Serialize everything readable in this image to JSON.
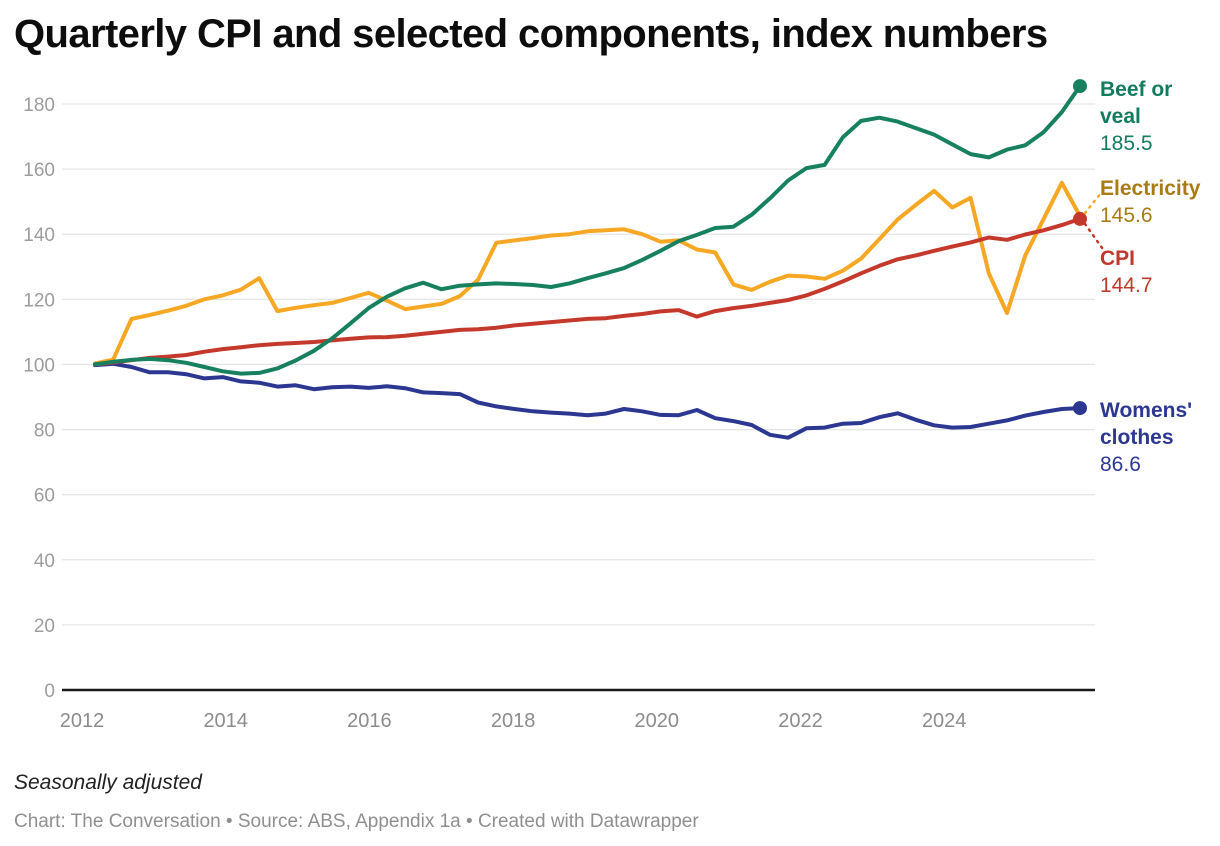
{
  "title": "Quarterly CPI and selected components, index numbers",
  "notes": "Seasonally adjusted",
  "footer": "Chart: The Conversation • Source: ABS, Appendix 1a • Created with Datawrapper",
  "series_labels": [
    {
      "label": "Beef or veal",
      "value": "185.5",
      "color": "#137c5e"
    },
    {
      "label": "Electricity",
      "value": "145.6",
      "color": "#a87c13"
    },
    {
      "label": "CPI",
      "value": "144.7",
      "color": "#c0392b"
    },
    {
      "label": "Womens' clothes",
      "value": "86.6",
      "color": "#2c3792"
    }
  ],
  "chart_data": {
    "type": "line",
    "frequency": "quarterly",
    "x_start": "2012 Q1",
    "x_end": "2025 Q3",
    "title": "Quarterly CPI and selected components, index numbers",
    "xlabel": "",
    "ylabel": "",
    "ylim": [
      0,
      190
    ],
    "grid": "horizontal",
    "legend_position": "right-edge-direct-labels",
    "y_ticks": [
      0,
      20,
      40,
      60,
      80,
      100,
      120,
      140,
      160,
      180
    ],
    "x_tick_labels": [
      "2012",
      "2014",
      "2016",
      "2018",
      "2020",
      "2022",
      "2024"
    ],
    "draw_order": [
      "electricity",
      "womens-clothes",
      "cpi",
      "beef-or-veal"
    ],
    "series": [
      {
        "id": "beef-or-veal",
        "name": "Beef or veal",
        "color": "#17805f",
        "end_dot": true,
        "last_value": 185.5,
        "values": [
          100.0,
          100.8,
          101.4,
          101.7,
          101.3,
          100.5,
          99.2,
          97.9,
          97.2,
          97.4,
          98.8,
          101.2,
          104.2,
          108.0,
          112.6,
          117.3,
          120.8,
          123.4,
          125.1,
          123.1,
          124.2,
          124.6,
          124.9,
          124.7,
          124.4,
          123.8,
          124.9,
          126.5,
          128.0,
          129.6,
          132.1,
          134.9,
          137.9,
          139.8,
          141.9,
          142.3,
          146.0,
          151.0,
          156.5,
          160.3,
          161.3,
          169.8,
          174.8,
          175.8,
          174.6,
          172.6,
          170.6,
          167.6,
          164.6,
          163.6,
          166.0,
          167.3,
          171.3,
          177.5,
          185.5
        ]
      },
      {
        "id": "electricity",
        "name": "Electricity",
        "color": "#f6a723",
        "end_dot": false,
        "last_value": 145.6,
        "values": [
          100.3,
          101.5,
          114.0,
          115.2,
          116.5,
          118.0,
          120.0,
          121.2,
          123.0,
          126.5,
          116.4,
          117.4,
          118.2,
          118.9,
          120.4,
          122.0,
          119.6,
          117.0,
          117.8,
          118.6,
          121.0,
          126.0,
          137.4,
          138.1,
          138.8,
          139.6,
          140.0,
          140.9,
          141.2,
          141.5,
          140.0,
          137.7,
          138.1,
          135.3,
          134.4,
          124.6,
          122.9,
          125.4,
          127.3,
          127.0,
          126.3,
          128.8,
          132.5,
          138.5,
          144.5,
          149.0,
          153.3,
          148.2,
          151.2,
          128.0,
          115.8,
          133.5,
          144.6,
          155.8,
          145.6
        ]
      },
      {
        "id": "cpi",
        "name": "CPI",
        "color": "#c5392c",
        "end_dot": true,
        "last_value": 144.7,
        "values": [
          100.0,
          100.6,
          101.3,
          102.0,
          102.4,
          102.9,
          103.9,
          104.7,
          105.3,
          105.9,
          106.3,
          106.6,
          106.9,
          107.4,
          107.9,
          108.3,
          108.4,
          108.8,
          109.4,
          110.0,
          110.6,
          110.8,
          111.3,
          112.0,
          112.5,
          113.0,
          113.5,
          114.0,
          114.2,
          114.9,
          115.5,
          116.3,
          116.7,
          114.7,
          116.4,
          117.3,
          118.0,
          118.9,
          119.8,
          121.2,
          123.2,
          125.5,
          128.0,
          130.3,
          132.3,
          133.5,
          134.9,
          136.2,
          137.5,
          139.0,
          138.3,
          139.9,
          141.2,
          142.8,
          144.7
        ]
      },
      {
        "id": "womens-clothes",
        "name": "Womens' clothes",
        "color": "#2c3792",
        "end_dot": true,
        "last_value": 86.6,
        "values": [
          99.8,
          100.2,
          99.2,
          97.6,
          97.6,
          97.0,
          95.7,
          96.1,
          94.8,
          94.4,
          93.2,
          93.6,
          92.4,
          93.0,
          93.2,
          92.8,
          93.3,
          92.7,
          91.4,
          91.2,
          90.9,
          88.3,
          87.1,
          86.3,
          85.6,
          85.2,
          84.9,
          84.4,
          84.9,
          86.3,
          85.6,
          84.5,
          84.4,
          86.0,
          83.5,
          82.6,
          81.4,
          78.4,
          77.5,
          80.4,
          80.6,
          81.8,
          82.0,
          83.8,
          85.0,
          83.0,
          81.3,
          80.6,
          80.8,
          81.8,
          82.8,
          84.3,
          85.4,
          86.3,
          86.6
        ]
      }
    ]
  }
}
